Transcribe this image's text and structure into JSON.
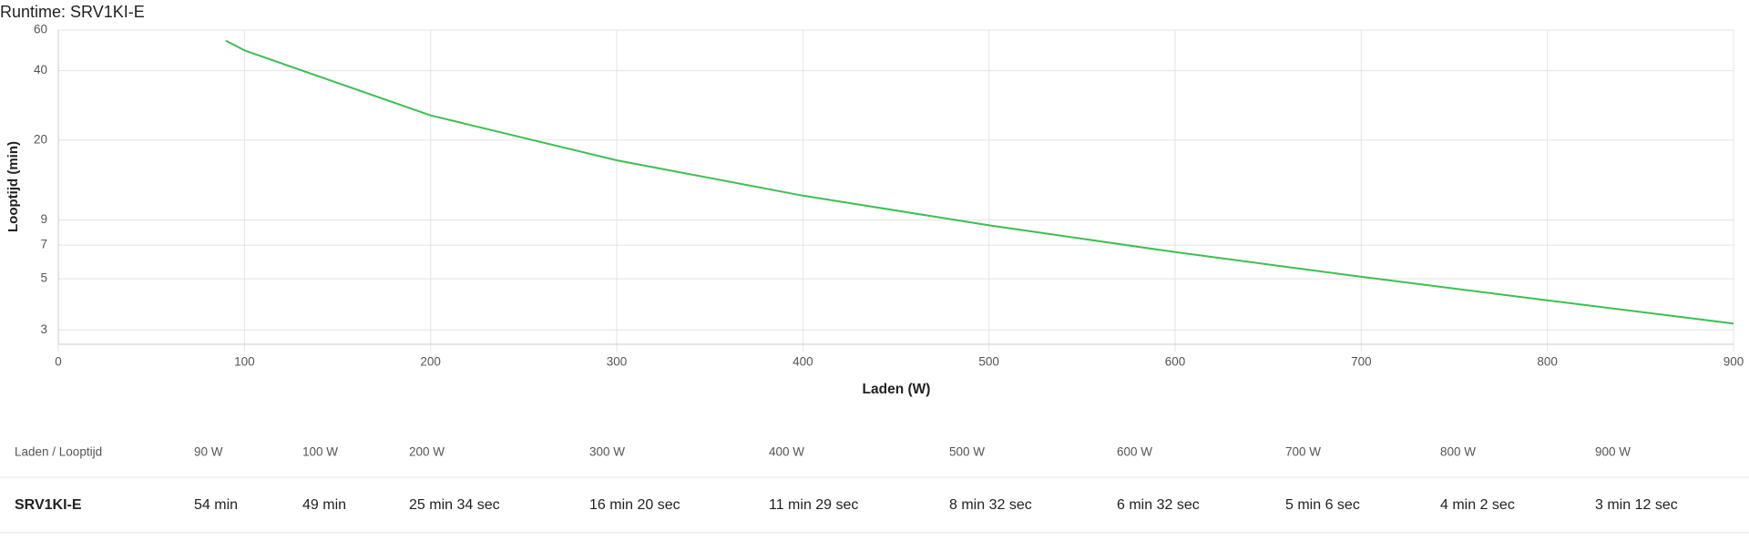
{
  "chart_data": {
    "type": "line",
    "title": "Runtime: SRV1KI-E",
    "x_label": "Laden (W)",
    "y_label": "Looptijd (min)",
    "x": [
      90,
      100,
      200,
      300,
      400,
      500,
      600,
      700,
      800,
      900
    ],
    "series": [
      {
        "name": "SRV1KI-E",
        "color": "#3dbf50",
        "values": [
          54,
          49,
          25.57,
          16.33,
          11.48,
          8.53,
          6.53,
          5.1,
          4.03,
          3.2
        ]
      }
    ],
    "xlim": [
      0,
      900
    ],
    "xticks": [
      0,
      100,
      200,
      300,
      400,
      500,
      600,
      700,
      800,
      900
    ],
    "ylim": [
      2.6,
      60
    ],
    "yticks": [
      3,
      5,
      7,
      9,
      20,
      40,
      60
    ],
    "y_scale": "log",
    "grid": true
  },
  "table": {
    "header": [
      "Laden / Looptijd",
      "90 W",
      "100 W",
      "200 W",
      "300 W",
      "400 W",
      "500 W",
      "600 W",
      "700 W",
      "800 W",
      "900 W"
    ],
    "rows": [
      [
        "SRV1KI-E",
        "54 min",
        "49 min",
        "25 min 34 sec",
        "16 min 20 sec",
        "11 min 29 sec",
        "8 min 32 sec",
        "6 min 32 sec",
        "5 min 6 sec",
        "4 min 2 sec",
        "3 min 12 sec"
      ]
    ]
  }
}
